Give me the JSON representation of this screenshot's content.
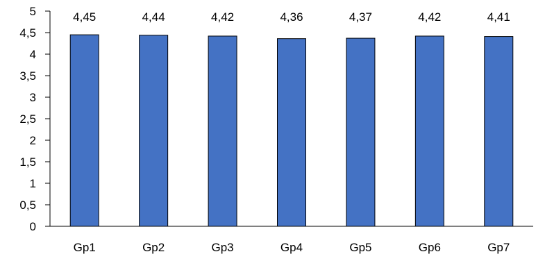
{
  "chart_data": {
    "type": "bar",
    "categories": [
      "Gp1",
      "Gp2",
      "Gp3",
      "Gp4",
      "Gp5",
      "Gp6",
      "Gp7"
    ],
    "values": [
      4.45,
      4.44,
      4.42,
      4.36,
      4.37,
      4.42,
      4.41
    ],
    "data_labels": [
      "4,45",
      "4,44",
      "4,42",
      "4,36",
      "4,37",
      "4,42",
      "4,41"
    ],
    "ylim": [
      0,
      5
    ],
    "y_ticks": [
      0,
      0.5,
      1,
      1.5,
      2,
      2.5,
      3,
      3.5,
      4,
      4.5,
      5
    ],
    "y_tick_labels": [
      "0",
      "0,5",
      "1",
      "1,5",
      "2",
      "2,5",
      "3",
      "3,5",
      "4",
      "4,5",
      "5"
    ],
    "title": "",
    "xlabel": "",
    "ylabel": "",
    "grid": false,
    "legend": "none",
    "colors": {
      "bar_fill": "#4472c4",
      "bar_stroke": "#000000",
      "axis": "#000000"
    }
  }
}
